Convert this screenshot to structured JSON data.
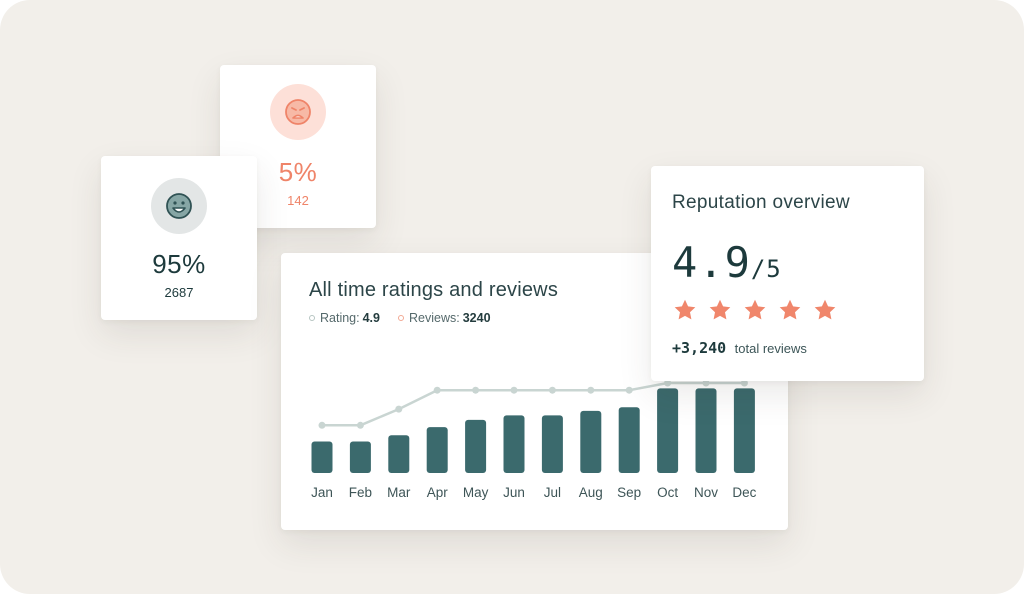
{
  "negative": {
    "percent": "5%",
    "count": "142",
    "icon": "sad-face-icon",
    "color": "#ef8469"
  },
  "positive": {
    "percent": "95%",
    "count": "2687",
    "icon": "happy-face-icon",
    "color": "#3b6a6d"
  },
  "chart": {
    "title": "All time ratings and reviews",
    "legend_rating_label": "Rating:",
    "legend_rating_value": "4.9",
    "legend_reviews_label": "Reviews:",
    "legend_reviews_value": "3240"
  },
  "reputation": {
    "title": "Reputation overview",
    "score": "4.9",
    "out_of": "/5",
    "stars": 5,
    "total": "+3,240",
    "total_label": "total reviews",
    "star_color": "#f0866b"
  },
  "chart_data": {
    "type": "bar",
    "categories": [
      "Jan",
      "Feb",
      "Mar",
      "Apr",
      "May",
      "Jun",
      "Jul",
      "Aug",
      "Sep",
      "Oct",
      "Nov",
      "Dec"
    ],
    "series": [
      {
        "values": [
          35,
          35,
          42,
          51,
          59,
          64,
          64,
          69,
          73,
          94,
          94,
          94
        ],
        "color": "#3b6a6d"
      },
      {
        "values": [
          53,
          53,
          71,
          92,
          92,
          92,
          92,
          92,
          92,
          100,
          100,
          100
        ],
        "color": "#c9d5d2"
      }
    ],
    "ylim": [
      0,
      100
    ],
    "grid": false
  }
}
